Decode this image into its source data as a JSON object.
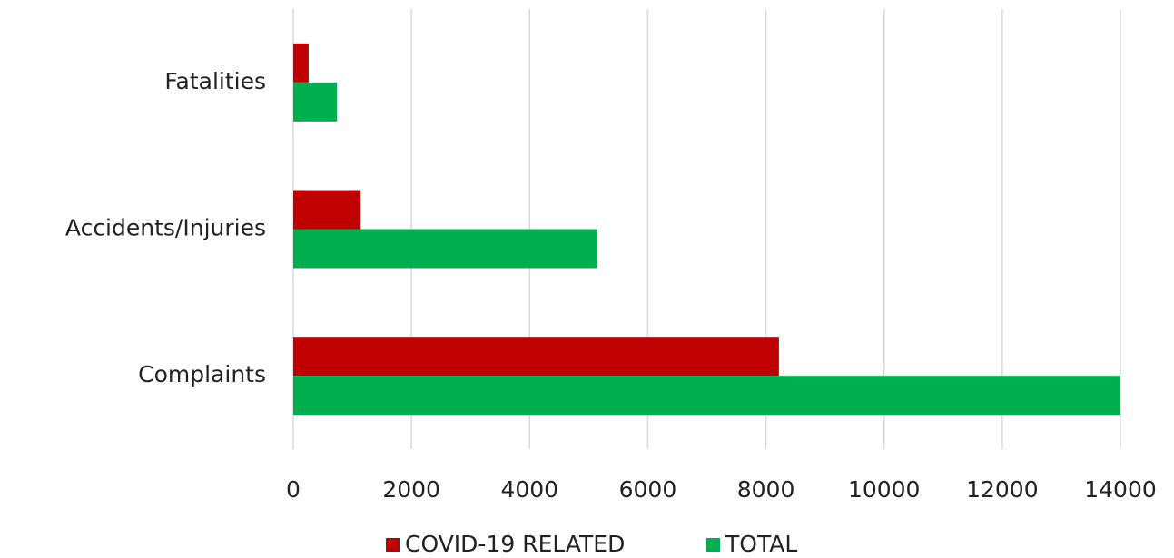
{
  "chart_data": {
    "type": "hbar",
    "categories": [
      "Fatalities",
      "Accidents/Injuries",
      "Complaints"
    ],
    "series": [
      {
        "name": "COVID-19 RELATED",
        "color": "#c00000",
        "values": [
          260,
          1140,
          8220
        ]
      },
      {
        "name": "TOTAL",
        "color": "#00b050",
        "values": [
          740,
          5150,
          14000
        ]
      }
    ],
    "xlim": [
      0,
      14000
    ],
    "xticks": [
      0,
      2000,
      4000,
      6000,
      8000,
      10000,
      12000,
      14000
    ],
    "grid": true,
    "legend": "bottom"
  }
}
